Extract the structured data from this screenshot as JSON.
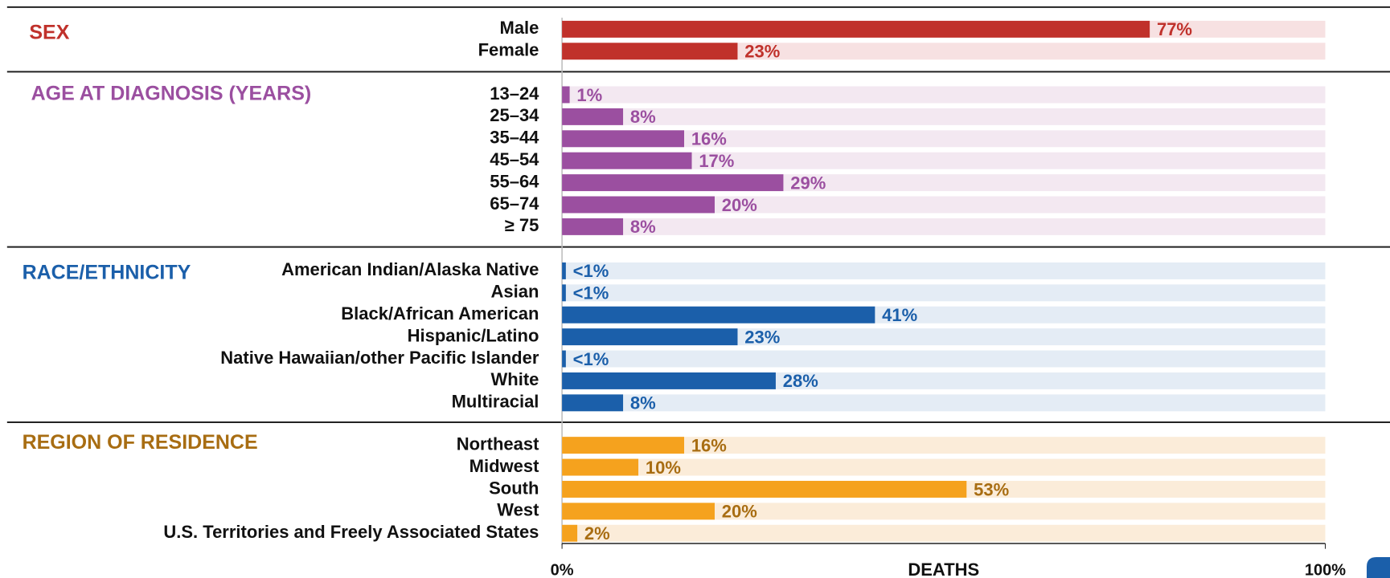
{
  "chart_data": {
    "type": "grouped-bar",
    "xlabel": "DEATHS",
    "xlim": [
      0,
      100
    ],
    "xticks": [
      {
        "value": 0,
        "label": "0%"
      },
      {
        "value": 100,
        "label": "100%"
      }
    ],
    "groups": [
      {
        "name": "SEX",
        "color": "#c0312b",
        "text_color": "#c0312b",
        "track_color": "#f7e1e2",
        "categories": [
          "Male",
          "Female"
        ],
        "values": [
          77,
          23
        ],
        "value_labels": [
          "77%",
          "23%"
        ]
      },
      {
        "name": "AGE AT DIAGNOSIS (YEARS)",
        "color": "#9b4fa0",
        "text_color": "#9b4fa0",
        "track_color": "#f3e8f1",
        "categories": [
          "13–24",
          "25–34",
          "35–44",
          "45–54",
          "55–64",
          "65–74",
          "≥ 75"
        ],
        "values": [
          1,
          8,
          16,
          17,
          29,
          20,
          8
        ],
        "value_labels": [
          "1%",
          "8%",
          "16%",
          "17%",
          "29%",
          "20%",
          "8%"
        ]
      },
      {
        "name": "RACE/ETHNICITY",
        "color": "#1b5faa",
        "text_color": "#1b5faa",
        "track_color": "#e4ecf5",
        "categories": [
          "American Indian/Alaska Native",
          "Asian",
          "Black/African American",
          "Hispanic/Latino",
          "Native Hawaiian/other Pacific Islander",
          "White",
          "Multiracial"
        ],
        "values": [
          0.5,
          0.5,
          41,
          23,
          0.5,
          28,
          8
        ],
        "value_labels": [
          "<1%",
          "<1%",
          "41%",
          "23%",
          "<1%",
          "28%",
          "8%"
        ]
      },
      {
        "name": "REGION OF RESIDENCE",
        "color": "#f5a21e",
        "text_color": "#a86d12",
        "track_color": "#fbecd9",
        "categories": [
          "Northeast",
          "Midwest",
          "South",
          "West",
          "U.S. Territories and Freely Associated States"
        ],
        "values": [
          16,
          10,
          53,
          20,
          2
        ],
        "value_labels": [
          "16%",
          "10%",
          "53%",
          "20%",
          "2%"
        ]
      }
    ]
  }
}
